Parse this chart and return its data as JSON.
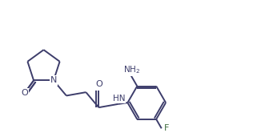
{
  "bg_color": "#ffffff",
  "line_color": "#3d3d6b",
  "n_color": "#3d3d6b",
  "o_color": "#3d3d6b",
  "f_color": "#3d6b3d",
  "linewidth": 1.4,
  "figsize": [
    3.16,
    1.71
  ],
  "dpi": 100,
  "xlim": [
    0,
    9.5
  ],
  "ylim": [
    0,
    5.1
  ]
}
